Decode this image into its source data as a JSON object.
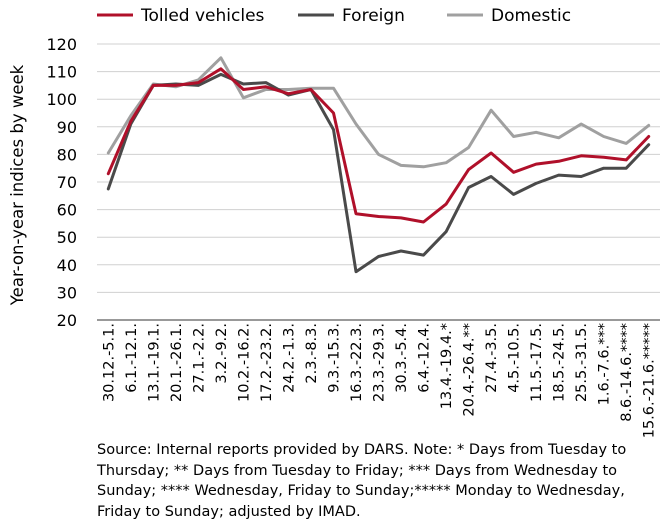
{
  "chart_data": {
    "type": "line",
    "ylabel": "Year-on-year indices by week",
    "ylim": [
      20,
      120
    ],
    "yticks": [
      20,
      30,
      40,
      50,
      60,
      70,
      80,
      90,
      100,
      110,
      120
    ],
    "grid": true,
    "legend_position": "top",
    "categories": [
      "30.12.-5.1.",
      "6.1.-12.1.",
      "13.1.-19.1.",
      "20.1.-26.1.",
      "27.1.-2.2.",
      "3.2.-9.2.",
      "10.2.-16.2.",
      "17.2.-23.2.",
      "24.2.-1.3.",
      "2.3.-8.3.",
      "9.3.-15.3.",
      "16.3.-22.3.",
      "23.3.-29.3.",
      "30.3.-5.4.",
      "6.4.-12.4.",
      "13.4.-19.4.*",
      "20.4.-26.4.**",
      "27.4.-3.5.",
      "4.5.-10.5.",
      "11.5.-17.5.",
      "18.5.-24.5.",
      "25.5.-31.5.",
      "1.6.-7.6.***",
      "8.6.-14.6.****",
      "15.6.-21.6.*****"
    ],
    "series": [
      {
        "name": "Tolled vehicles",
        "color": "#b0102a",
        "values": [
          73,
          92,
          105,
          105,
          106,
          111,
          103.5,
          104.5,
          102,
          103.5,
          95,
          58.5,
          57.5,
          57,
          55.5,
          62,
          74.5,
          80.5,
          73.5,
          76.5,
          77.5,
          79.5,
          79,
          78,
          86.5
        ]
      },
      {
        "name": "Foreign",
        "color": "#4a4a4a",
        "values": [
          67.5,
          91,
          105,
          105.5,
          105,
          109,
          105.5,
          106,
          101.5,
          103.5,
          89,
          37.5,
          43,
          45,
          43.5,
          52,
          68,
          72,
          65.5,
          69.5,
          72.5,
          72,
          75,
          75,
          83.5
        ]
      },
      {
        "name": "Domestic",
        "color": "#a0a0a0",
        "values": [
          80.5,
          94,
          105.5,
          104.5,
          107,
          115,
          100.5,
          103.5,
          103.5,
          104,
          104,
          91,
          80,
          76,
          75.5,
          77,
          82.5,
          96,
          86.5,
          88,
          86,
          91,
          86.5,
          84,
          90.5
        ]
      }
    ]
  },
  "source_note": "Source: Internal reports provided by DARS. Note: * Days from Tuesday to Thursday; ** Days from Tuesday to Friday; *** Days from Wednesday to Sunday; **** Wednesday, Friday to Sunday;***** Monday to Wednesday, Friday to Sunday; adjusted by IMAD."
}
